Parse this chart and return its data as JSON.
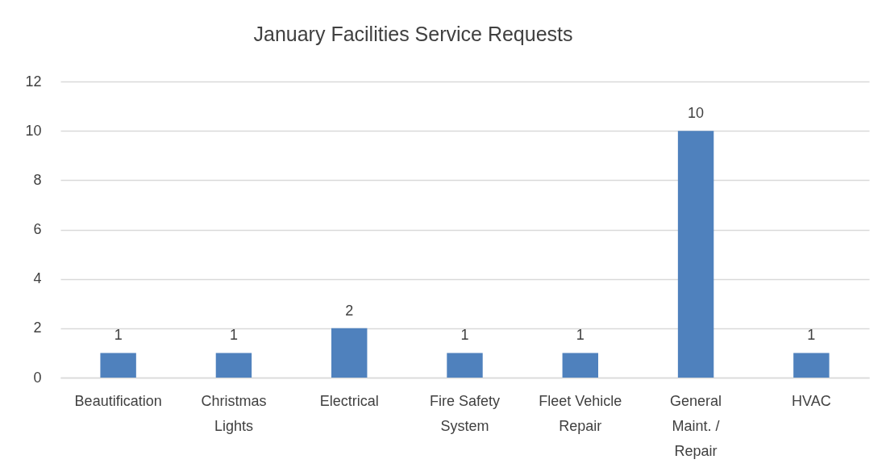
{
  "chart_data": {
    "type": "bar",
    "title": "January Facilities Service Requests",
    "categories": [
      "Beautification",
      "Christmas Lights",
      "Electrical",
      "Fire Safety System",
      "Fleet Vehicle Repair",
      "General Maint. / Repair",
      "HVAC"
    ],
    "values": [
      1,
      1,
      2,
      1,
      1,
      10,
      1
    ],
    "color": "#4f81bd",
    "ylim": [
      0,
      12
    ],
    "yticks": [
      0,
      2,
      4,
      6,
      8,
      10,
      12
    ],
    "grid": "y",
    "data_labels": true
  }
}
